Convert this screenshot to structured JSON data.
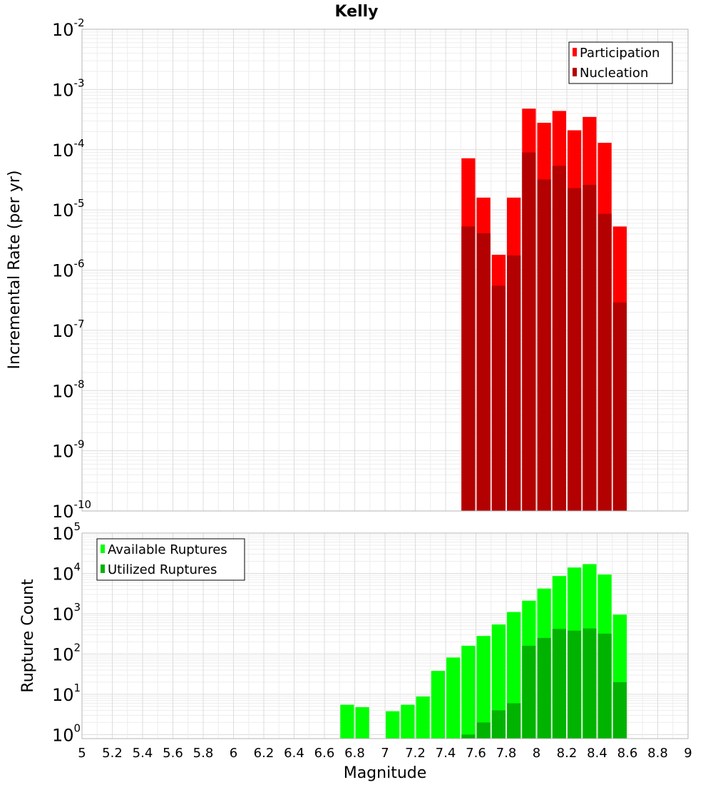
{
  "chart_data": {
    "title": "Kelly",
    "xlabel": "Magnitude",
    "xlim": [
      5,
      9
    ],
    "xticks": [
      "5",
      "5.2",
      "5.4",
      "5.6",
      "5.8",
      "6",
      "6.2",
      "6.4",
      "6.6",
      "6.8",
      "7",
      "7.2",
      "7.4",
      "7.6",
      "7.8",
      "8",
      "8.2",
      "8.4",
      "8.6",
      "8.8",
      "9"
    ],
    "bin_width": 0.1,
    "panels": [
      {
        "type": "bar",
        "scale": "log",
        "ylabel": "Incremental Rate (per yr)",
        "ylim_exp": [
          -10,
          -2
        ],
        "ytick_base": "10",
        "ytick_exponents": [
          "-10",
          "-9",
          "-8",
          "-7",
          "-6",
          "-5",
          "-4",
          "-3",
          "-2"
        ],
        "grid": true,
        "legend_position": "top-right",
        "x": [
          7.55,
          7.65,
          7.75,
          7.85,
          7.95,
          8.05,
          8.15,
          8.25,
          8.35,
          8.45,
          8.55
        ],
        "series": [
          {
            "name": "Participation",
            "color": "#ff0000",
            "values": [
              7.2e-05,
              1.6e-05,
              1.8e-06,
              1.6e-05,
              0.00048,
              0.00028,
              0.00044,
              0.00021,
              0.00035,
              0.00013,
              5.3e-06
            ]
          },
          {
            "name": "Nucleation",
            "color": "#b30000",
            "values": [
              5.3e-06,
              4.1e-06,
              5.5e-07,
              1.75e-06,
              9e-05,
              3.2e-05,
              5.4e-05,
              2.3e-05,
              2.6e-05,
              8.6e-06,
              2.9e-07
            ]
          }
        ]
      },
      {
        "type": "bar",
        "scale": "log",
        "ylabel": "Rupture Count",
        "ylim_exp": [
          -0.1,
          5
        ],
        "ytick_base": "10",
        "ytick_exponents": [
          "0",
          "1",
          "2",
          "3",
          "4",
          "5"
        ],
        "grid": true,
        "legend_position": "top-left",
        "x": [
          6.75,
          6.85,
          7.05,
          7.15,
          7.25,
          7.35,
          7.45,
          7.55,
          7.65,
          7.75,
          7.85,
          7.95,
          8.05,
          8.15,
          8.25,
          8.35,
          8.45,
          8.55
        ],
        "series": [
          {
            "name": "Available Ruptures",
            "color": "#00ff00",
            "values": [
              5.5,
              4.8,
              3.8,
              5.5,
              8.8,
              38,
              82,
              160,
              280,
              540,
              1100,
              2100,
              4200,
              8600,
              14000,
              17000,
              9400,
              950
            ]
          },
          {
            "name": "Utilized Ruptures",
            "color": "#00b300",
            "values": [
              0,
              0,
              0,
              0,
              0,
              0,
              0,
              1,
              2,
              4,
              6,
              160,
              250,
              420,
              380,
              430,
              320,
              20
            ]
          }
        ]
      }
    ]
  }
}
